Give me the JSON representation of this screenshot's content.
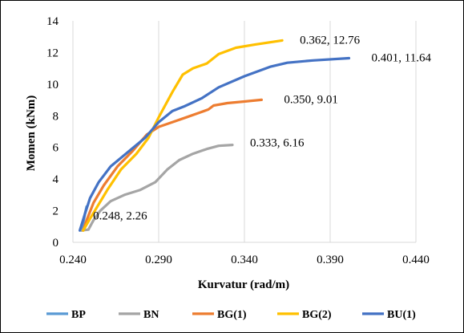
{
  "chart_data": {
    "type": "line",
    "title": "",
    "xlabel": "Kurvatur (rad/m)",
    "ylabel": "Momen (kNm)",
    "xlim": [
      0.24,
      0.44
    ],
    "ylim": [
      0,
      14
    ],
    "xticks": [
      "0.240",
      "0.290",
      "0.340",
      "0.390",
      "0.440"
    ],
    "yticks": [
      "0",
      "2",
      "4",
      "6",
      "8",
      "10",
      "12",
      "14"
    ],
    "grid": "vertical",
    "legend_position": "bottom",
    "series": [
      {
        "name": "BP",
        "color": "#5B9BD5",
        "x": [
          0.245,
          0.246,
          0.247,
          0.248
        ],
        "y": [
          0.75,
          1.2,
          1.8,
          2.26
        ],
        "data_label": "0.248, 2.26"
      },
      {
        "name": "BN",
        "color": "#A5A5A5",
        "x": [
          0.245,
          0.249,
          0.252,
          0.256,
          0.262,
          0.27,
          0.279,
          0.288,
          0.295,
          0.302,
          0.31,
          0.318,
          0.325,
          0.333
        ],
        "y": [
          0.75,
          0.8,
          1.4,
          2.0,
          2.6,
          3.0,
          3.3,
          3.8,
          4.6,
          5.2,
          5.6,
          5.9,
          6.1,
          6.16
        ],
        "data_label": "0.333, 6.16"
      },
      {
        "name": "BG(1)",
        "color": "#ED7D31",
        "x": [
          0.246,
          0.248,
          0.252,
          0.258,
          0.266,
          0.275,
          0.283,
          0.29,
          0.298,
          0.306,
          0.314,
          0.319,
          0.322,
          0.33,
          0.34,
          0.35
        ],
        "y": [
          0.75,
          1.4,
          2.5,
          3.6,
          4.8,
          5.8,
          6.8,
          7.3,
          7.6,
          7.9,
          8.2,
          8.4,
          8.65,
          8.8,
          8.9,
          9.01
        ],
        "data_label": "0.350, 9.01"
      },
      {
        "name": "BG(2)",
        "color": "#FFC000",
        "x": [
          0.246,
          0.25,
          0.255,
          0.26,
          0.268,
          0.277,
          0.284,
          0.29,
          0.298,
          0.304,
          0.31,
          0.318,
          0.325,
          0.335,
          0.346,
          0.362
        ],
        "y": [
          0.75,
          1.5,
          2.4,
          3.3,
          4.6,
          5.6,
          6.6,
          7.9,
          9.5,
          10.6,
          11.0,
          11.3,
          11.9,
          12.3,
          12.5,
          12.76
        ],
        "data_label": "0.362, 12.76"
      },
      {
        "name": "BU(1)",
        "color": "#4472C4",
        "x": [
          0.244,
          0.247,
          0.25,
          0.255,
          0.262,
          0.272,
          0.282,
          0.29,
          0.298,
          0.305,
          0.315,
          0.325,
          0.34,
          0.355,
          0.365,
          0.38,
          0.401
        ],
        "y": [
          0.75,
          1.8,
          2.8,
          3.8,
          4.8,
          5.7,
          6.6,
          7.6,
          8.3,
          8.6,
          9.1,
          9.8,
          10.5,
          11.1,
          11.35,
          11.5,
          11.64
        ],
        "data_label": "0.401, 11.64"
      }
    ]
  }
}
